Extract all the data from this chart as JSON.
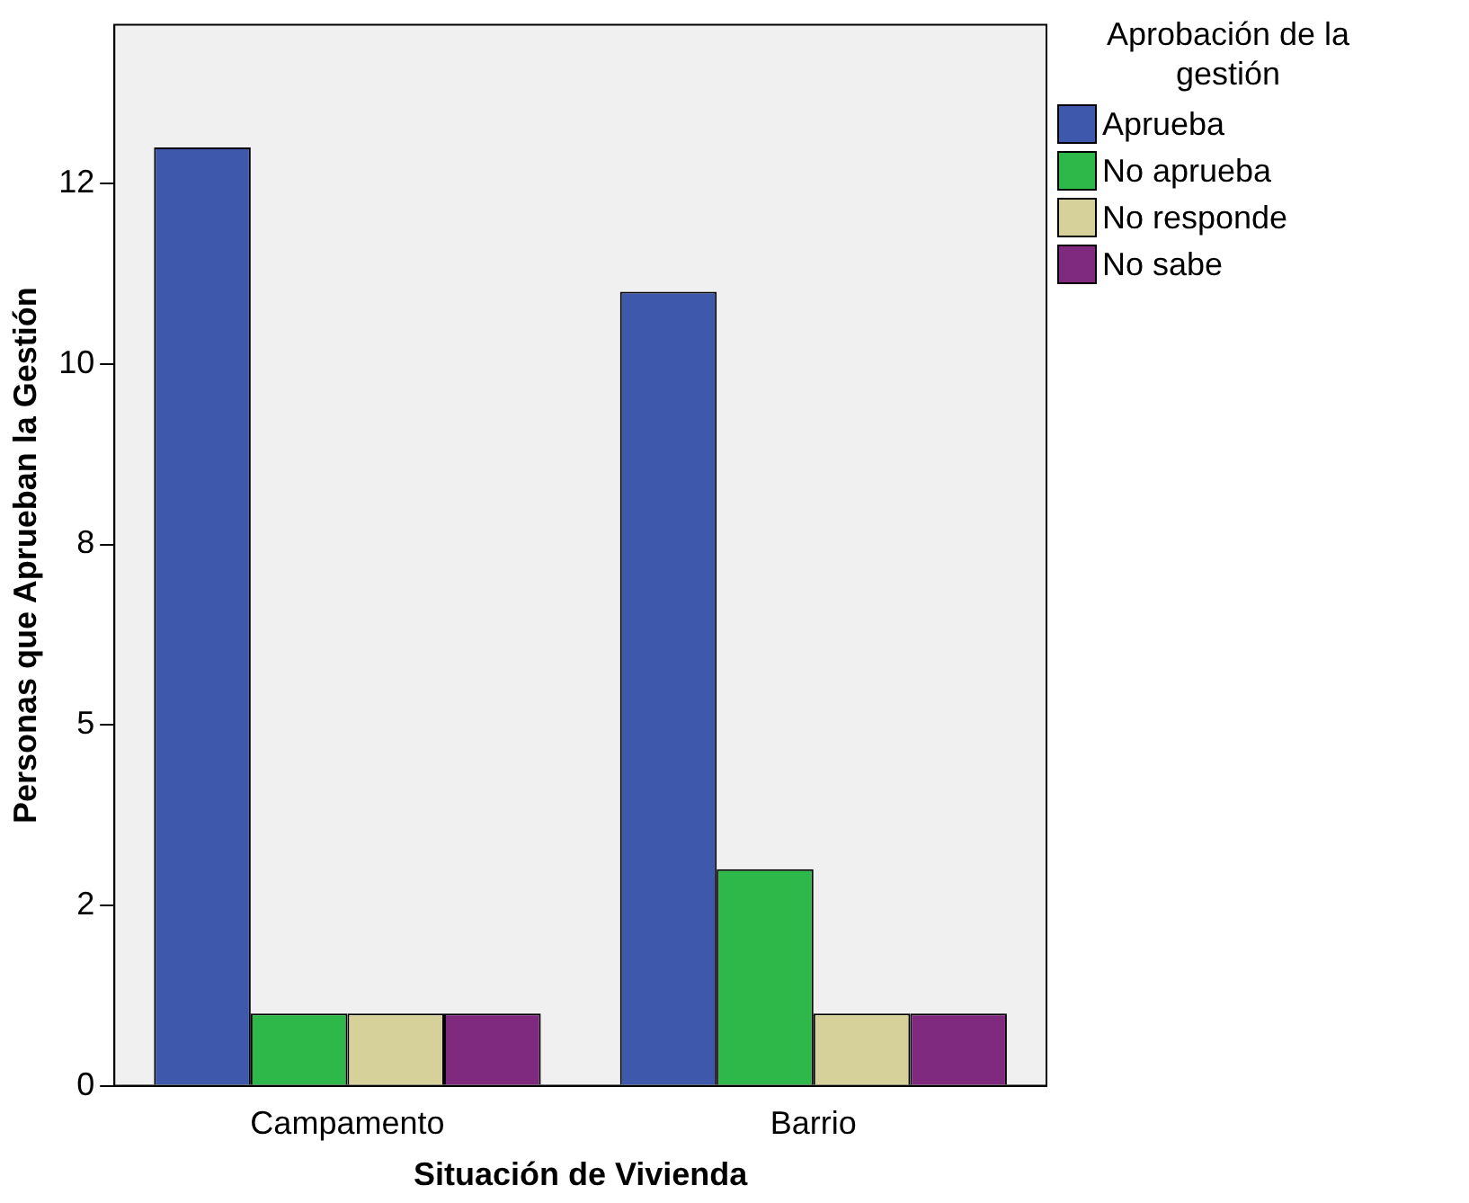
{
  "chart_data": {
    "type": "bar",
    "xlabel": "Situación de Vivienda",
    "ylabel": "Personas que Aprueban la Gestión",
    "legend_title": "Aprobación de la gestión",
    "categories": [
      "Campamento",
      "Barrio"
    ],
    "series": [
      {
        "name": "Aprueba",
        "color": "#3e58ac",
        "values": [
          13,
          11
        ]
      },
      {
        "name": "No aprueba",
        "color": "#2fb84a",
        "values": [
          1,
          3
        ]
      },
      {
        "name": "No responde",
        "color": "#d6d09a",
        "values": [
          1,
          1
        ]
      },
      {
        "name": "No sabe",
        "color": "#7f2a7f",
        "values": [
          1,
          1
        ]
      }
    ],
    "ylim": [
      0,
      14.7
    ],
    "yticks": [
      0,
      {
        "value": 2.5,
        "label": "2"
      },
      5,
      {
        "value": 7.5,
        "label": "8"
      },
      10,
      {
        "value": 12.5,
        "label": "12"
      }
    ],
    "grid": false,
    "legend": "top right"
  }
}
